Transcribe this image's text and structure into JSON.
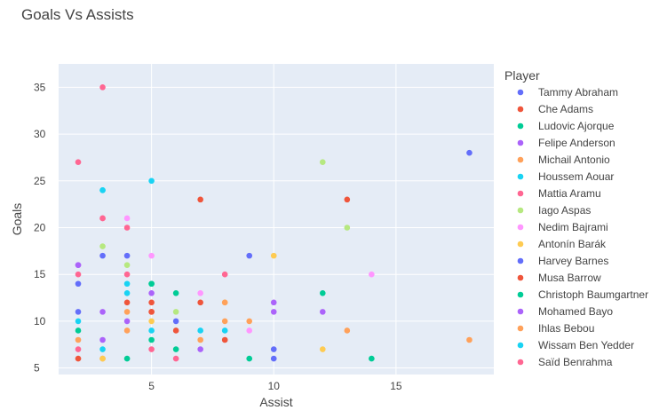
{
  "chart_data": {
    "type": "scatter",
    "title": "Goals Vs Assists",
    "xlabel": "Assist",
    "ylabel": "Goals",
    "xlim": [
      1.2,
      19.0
    ],
    "ylim": [
      4.3,
      37.5
    ],
    "xticks": [
      5,
      10,
      15
    ],
    "yticks": [
      5,
      10,
      15,
      20,
      25,
      30,
      35
    ],
    "grid": true,
    "legend_title": "Player",
    "legend_position": "right",
    "series": [
      {
        "name": "Tammy Abraham",
        "color": "#636efa",
        "points": [
          [
            18,
            28
          ],
          [
            9,
            17
          ],
          [
            3,
            17
          ],
          [
            10,
            7
          ]
        ]
      },
      {
        "name": "Che Adams",
        "color": "#EF553B",
        "points": [
          [
            7,
            23
          ],
          [
            13,
            23
          ],
          [
            5,
            11
          ],
          [
            5,
            12
          ],
          [
            8,
            8
          ]
        ]
      },
      {
        "name": "Ludovic Ajorque",
        "color": "#00cc96",
        "points": [
          [
            14,
            6
          ],
          [
            9,
            6
          ],
          [
            12,
            13
          ],
          [
            6,
            13
          ],
          [
            5,
            14
          ]
        ]
      },
      {
        "name": "Felipe Anderson",
        "color": "#ab63fa",
        "points": [
          [
            12,
            11
          ],
          [
            10,
            12
          ],
          [
            2,
            16
          ],
          [
            4,
            10
          ],
          [
            7,
            7
          ]
        ]
      },
      {
        "name": "Michail Antonio",
        "color": "#FFA15A",
        "points": [
          [
            18,
            8
          ],
          [
            13,
            9
          ],
          [
            9,
            10
          ],
          [
            8,
            10
          ],
          [
            3,
            6
          ]
        ]
      },
      {
        "name": "Houssem Aouar",
        "color": "#19d3f3",
        "points": [
          [
            5,
            25
          ],
          [
            3,
            24
          ],
          [
            4,
            14
          ],
          [
            7,
            9
          ],
          [
            2,
            10
          ]
        ]
      },
      {
        "name": "Mattia Aramu",
        "color": "#FF6692",
        "points": [
          [
            3,
            35
          ],
          [
            2,
            27
          ],
          [
            3,
            21
          ],
          [
            4,
            20
          ],
          [
            8,
            15
          ]
        ]
      },
      {
        "name": "Iago Aspas",
        "color": "#B6E880",
        "points": [
          [
            12,
            27
          ],
          [
            13,
            20
          ],
          [
            3,
            18
          ],
          [
            4,
            16
          ],
          [
            6,
            11
          ]
        ]
      },
      {
        "name": "Nedim Bajrami",
        "color": "#FF97FF",
        "points": [
          [
            4,
            21
          ],
          [
            5,
            17
          ],
          [
            14,
            15
          ],
          [
            7,
            13
          ],
          [
            9,
            9
          ]
        ]
      },
      {
        "name": "Antonín Barák",
        "color": "#FECB52",
        "points": [
          [
            10,
            17
          ],
          [
            12,
            7
          ],
          [
            8,
            12
          ],
          [
            5,
            10
          ],
          [
            3,
            6
          ]
        ]
      },
      {
        "name": "Harvey Barnes",
        "color": "#636efa",
        "points": [
          [
            4,
            17
          ],
          [
            2,
            14
          ],
          [
            2,
            11
          ],
          [
            6,
            10
          ],
          [
            10,
            6
          ]
        ]
      },
      {
        "name": "Musa Barrow",
        "color": "#EF553B",
        "points": [
          [
            4,
            12
          ],
          [
            6,
            9
          ],
          [
            7,
            12
          ],
          [
            5,
            11
          ],
          [
            2,
            6
          ]
        ]
      },
      {
        "name": "Christoph Baumgartner",
        "color": "#00cc96",
        "points": [
          [
            5,
            14
          ],
          [
            2,
            9
          ],
          [
            5,
            8
          ],
          [
            4,
            6
          ],
          [
            6,
            7
          ]
        ]
      },
      {
        "name": "Mohamed Bayo",
        "color": "#ab63fa",
        "points": [
          [
            2,
            16
          ],
          [
            5,
            13
          ],
          [
            3,
            11
          ],
          [
            10,
            11
          ],
          [
            3,
            8
          ]
        ]
      },
      {
        "name": "Ihlas Bebou",
        "color": "#FFA15A",
        "points": [
          [
            2,
            8
          ],
          [
            4,
            11
          ],
          [
            8,
            12
          ],
          [
            7,
            8
          ],
          [
            4,
            9
          ]
        ]
      },
      {
        "name": "Wissam Ben Yedder",
        "color": "#19d3f3",
        "points": [
          [
            3,
            24
          ],
          [
            4,
            13
          ],
          [
            5,
            9
          ],
          [
            8,
            9
          ],
          [
            3,
            7
          ]
        ]
      },
      {
        "name": "Saïd Benrahma",
        "color": "#FF6692",
        "points": [
          [
            3,
            21
          ],
          [
            2,
            15
          ],
          [
            4,
            15
          ],
          [
            5,
            7
          ],
          [
            6,
            6
          ],
          [
            2,
            7
          ]
        ]
      }
    ]
  }
}
